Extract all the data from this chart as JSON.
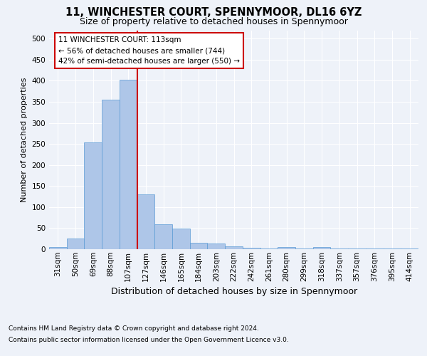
{
  "title_line1": "11, WINCHESTER COURT, SPENNYMOOR, DL16 6YZ",
  "title_line2": "Size of property relative to detached houses in Spennymoor",
  "xlabel": "Distribution of detached houses by size in Spennymoor",
  "ylabel": "Number of detached properties",
  "categories": [
    "31sqm",
    "50sqm",
    "69sqm",
    "88sqm",
    "107sqm",
    "127sqm",
    "146sqm",
    "165sqm",
    "184sqm",
    "203sqm",
    "222sqm",
    "242sqm",
    "261sqm",
    "280sqm",
    "299sqm",
    "318sqm",
    "337sqm",
    "357sqm",
    "376sqm",
    "395sqm",
    "414sqm"
  ],
  "values": [
    5,
    25,
    253,
    355,
    403,
    130,
    60,
    49,
    15,
    13,
    7,
    3,
    2,
    5,
    2,
    5,
    2,
    2,
    1,
    1,
    2
  ],
  "bar_color": "#aec6e8",
  "bar_edge_color": "#5b9bd5",
  "vline_x_index": 4,
  "vline_color": "#cc0000",
  "annotation_text": "11 WINCHESTER COURT: 113sqm\n← 56% of detached houses are smaller (744)\n42% of semi-detached houses are larger (550) →",
  "annotation_box_color": "#ffffff",
  "annotation_box_edge": "#cc0000",
  "ylim": [
    0,
    520
  ],
  "yticks": [
    0,
    50,
    100,
    150,
    200,
    250,
    300,
    350,
    400,
    450,
    500
  ],
  "footnote1": "Contains HM Land Registry data © Crown copyright and database right 2024.",
  "footnote2": "Contains public sector information licensed under the Open Government Licence v3.0.",
  "bg_color": "#eef2f9",
  "plot_bg_color": "#eef2f9",
  "title_fontsize": 10.5,
  "subtitle_fontsize": 9,
  "ylabel_fontsize": 8,
  "xlabel_fontsize": 9,
  "tick_fontsize": 7.5,
  "footnote_fontsize": 6.5
}
